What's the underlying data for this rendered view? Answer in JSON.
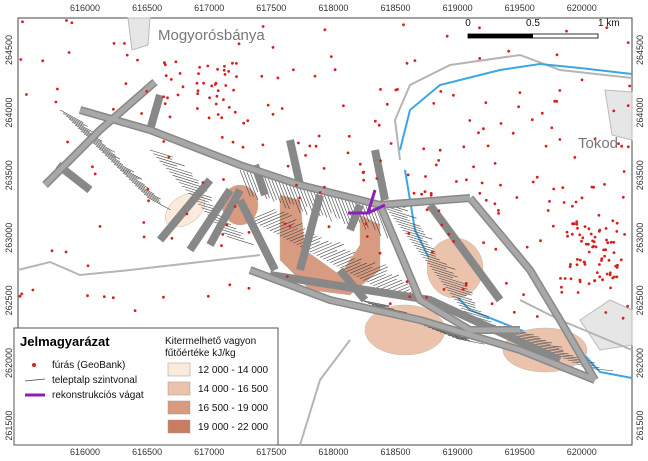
{
  "map": {
    "x_ticks": [
      "616000",
      "616500",
      "617000",
      "617500",
      "618000",
      "618500",
      "619000",
      "619500",
      "620000"
    ],
    "y_ticks": [
      "264500",
      "264000",
      "263500",
      "263000",
      "262500",
      "262000",
      "261500"
    ],
    "places": [
      "Mogyorósbánya",
      "Tokod"
    ],
    "scale_bar": [
      "0",
      "0.5",
      "1 km"
    ],
    "legend": {
      "title": "Jelmagyarázat",
      "items": [
        "fúrás (GeoBank)",
        "teleptalp szintvonal",
        "rekonstrukciós vágat"
      ]
    },
    "resource_legend": {
      "title_lines": [
        "Kitermelhető vagyon",
        "fűtőértéke  kJ/kg"
      ],
      "classes": [
        {
          "label": "12 000 - 14 000",
          "color": "#fcebdc"
        },
        {
          "label": "14 000 - 16 500",
          "color": "#ebc3ad"
        },
        {
          "label": "16 500 - 19 000",
          "color": "#d89a80"
        },
        {
          "label": "19 000 - 22 000",
          "color": "#c87c64"
        }
      ]
    }
  }
}
